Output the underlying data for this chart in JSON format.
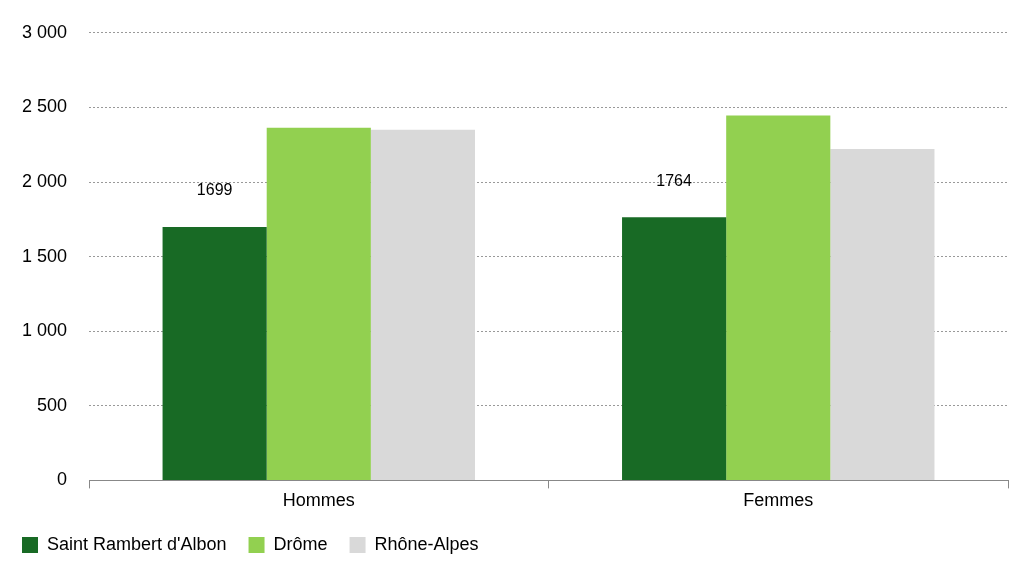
{
  "chart_data": {
    "type": "bar",
    "categories": [
      "Hommes",
      "Femmes"
    ],
    "series": [
      {
        "name": "Saint Rambert d'Albon",
        "color": "#186a25",
        "values": [
          1699,
          1764
        ],
        "value_labels": [
          "1699",
          "1764"
        ]
      },
      {
        "name": "Drôme",
        "color": "#92d050",
        "values": [
          2363,
          2445
        ]
      },
      {
        "name": "Rhône-Alpes",
        "color": "#d9d9d9",
        "values": [
          2350,
          2221
        ]
      }
    ],
    "ylim": [
      0,
      3000
    ],
    "yticks": [
      0,
      500,
      {
        "value": 1000,
        "label": "1 000"
      },
      {
        "value": 1500,
        "label": "1 500"
      },
      {
        "value": 2000,
        "label": "2 000"
      },
      {
        "value": 2500,
        "label": "2 500"
      },
      {
        "value": 3000,
        "label": "3 000"
      }
    ],
    "grid": "y",
    "legend": "bottom left"
  }
}
